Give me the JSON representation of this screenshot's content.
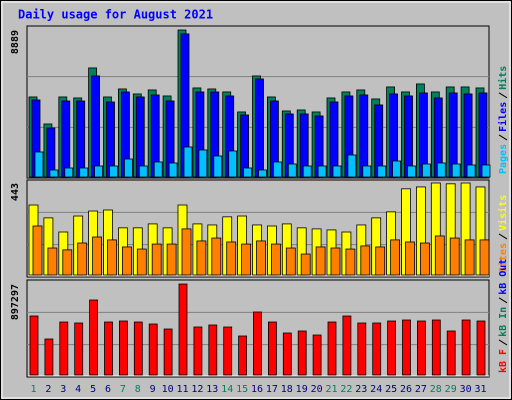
{
  "chart_data": [
    {
      "type": "bar",
      "title": "Daily usage for August 2021",
      "ylim": [
        0,
        8889
      ],
      "yticks": [
        8889
      ],
      "series": [
        {
          "name": "Hits",
          "color": "#00805c",
          "values": [
            4840,
            3207,
            4840,
            4780,
            6595,
            4840,
            5324,
            5022,
            5264,
            4901,
            8889,
            5385,
            5324,
            5143,
            3933,
            6111,
            4840,
            3993,
            4054,
            3933,
            4780,
            5143,
            5264,
            4719,
            5445,
            5143,
            5627,
            5143,
            5445,
            5445,
            5385
          ]
        },
        {
          "name": "Files",
          "color": "#0000ff",
          "values": [
            4659,
            2965,
            4598,
            4598,
            6111,
            4538,
            5143,
            4840,
            4961,
            4598,
            8652,
            5143,
            5143,
            4901,
            3751,
            5929,
            4598,
            3812,
            3812,
            3691,
            4538,
            4901,
            4961,
            4356,
            5022,
            4901,
            5082,
            4780,
            5082,
            5022,
            5082
          ]
        },
        {
          "name": "Pages",
          "color": "#00c0ff",
          "values": [
            1513,
            424,
            545,
            545,
            666,
            666,
            1089,
            666,
            908,
            847,
            1815,
            1634,
            1271,
            1573,
            545,
            424,
            908,
            787,
            666,
            666,
            666,
            1331,
            666,
            666,
            968,
            666,
            787,
            847,
            787,
            726,
            726
          ]
        }
      ]
    },
    {
      "type": "bar",
      "ylim": [
        0,
        443
      ],
      "yticks": [
        443
      ],
      "series": [
        {
          "name": "Visits",
          "color": "#ffff00",
          "values": [
            337,
            275,
            207,
            284,
            308,
            313,
            227,
            227,
            246,
            227,
            337,
            246,
            241,
            280,
            284,
            241,
            236,
            246,
            227,
            222,
            217,
            207,
            241,
            275,
            304,
            415,
            424,
            443,
            439,
            443,
            424
          ]
        },
        {
          "name": "Sites",
          "color": "#ff8000",
          "values": [
            236,
            130,
            121,
            154,
            183,
            169,
            135,
            125,
            149,
            149,
            222,
            164,
            178,
            159,
            149,
            164,
            149,
            130,
            101,
            135,
            130,
            125,
            140,
            135,
            169,
            159,
            154,
            188,
            178,
            169,
            169
          ]
        }
      ]
    },
    {
      "type": "bar",
      "ylim": [
        0,
        897297
      ],
      "yticks": [
        897297
      ],
      "series": [
        {
          "name": "kB F",
          "color": "#ff0000",
          "values": [
            581740,
            354960,
            522580,
            512720,
            739500,
            522580,
            532440,
            522580,
            502860,
            453560,
            897297,
            473280,
            493000,
            473280,
            384540,
            621180,
            522580,
            414120,
            433840,
            394400,
            522580,
            581740,
            512720,
            512720,
            532440,
            542300,
            532440,
            542300,
            433840,
            542300,
            532440
          ]
        }
      ],
      "legend_only": [
        {
          "name": "kB In",
          "color": "#00805c"
        },
        {
          "name": "kB Out",
          "color": "#0000ff"
        }
      ],
      "categories": [
        "1",
        "2",
        "3",
        "4",
        "5",
        "6",
        "7",
        "8",
        "9",
        "10",
        "11",
        "12",
        "13",
        "14",
        "15",
        "16",
        "17",
        "18",
        "19",
        "20",
        "21",
        "22",
        "23",
        "24",
        "25",
        "26",
        "27",
        "28",
        "29",
        "30",
        "31"
      ],
      "category_colors": [
        "#00805c",
        "#000080",
        "#000080",
        "#000080",
        "#000080",
        "#000080",
        "#00805c",
        "#00805c",
        "#000080",
        "#000080",
        "#000080",
        "#000080",
        "#000080",
        "#00805c",
        "#00805c",
        "#000080",
        "#000080",
        "#000080",
        "#000080",
        "#000080",
        "#00805c",
        "#00805c",
        "#000080",
        "#000080",
        "#000080",
        "#000080",
        "#000080",
        "#00805c",
        "#00805c",
        "#000080",
        "#000080"
      ]
    }
  ]
}
